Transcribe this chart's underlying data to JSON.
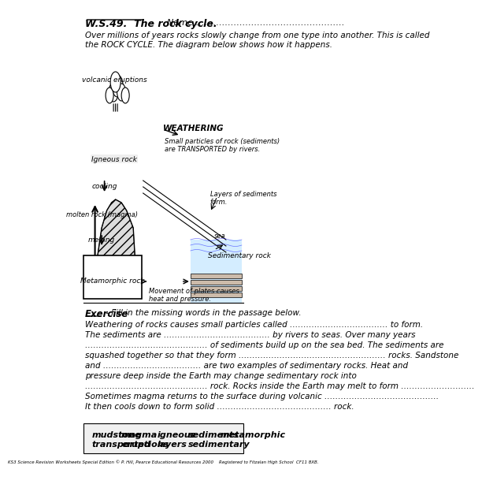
{
  "title": "W.S.49.  The rock cycle.",
  "name_line": "Name ……………………………………………",
  "intro": "Over millions of years rocks slowly change from one type into another. This is called\nthe ROCK CYCLE. The diagram below shows how it happens.",
  "exercise_label": "Exercise",
  "exercise_sub": " - Fill in the missing words in the passage below.",
  "passage_lines": [
    "Weathering of rocks causes small particles called ……………………………… to form.",
    "The sediments are ………………………………… by rivers to seas. Over many years",
    "……………………………………… of sediments build up on the sea bed. The sediments are",
    "squashed together so that they form ……………………………………………… rocks. Sandstone",
    "and ……………………………… are two examples of sedimentary rocks. Heat and",
    "pressure deep inside the Earth may change sedimentary rock into",
    "……………………………………… rock. Rocks inside the Earth may melt to form ………………………",
    "Sometimes magma returns to the surface during volcanic ……………………………………",
    "It then cools down to form solid …………………………………… rock."
  ],
  "word_bank_row1": [
    "mudstone",
    "magma",
    "igneous",
    "sediments",
    "metamorphic"
  ],
  "word_bank_row2": [
    "transported",
    "eruptions",
    "layers",
    "sedimentary"
  ],
  "footer": "KS3 Science Revision Worksheets Special Edition © P. Hill, Pearce Educational Resources 2000    Registered to Fitzalan High School  CF11 8XB.",
  "bg_color": "#ffffff",
  "text_color": "#000000",
  "diagram_labels": {
    "volcanic_eruptions": "volcanic eruptions",
    "weathering": "WEATHERING",
    "igneous_rock": "Igneous rock",
    "cooling": "cooling",
    "molten_rock": "molten rock (magma)",
    "melting": "melting",
    "metamorphic_rock": "Metamorphic rock",
    "sediments_transport": "Small particles of rock (sediments)\nare TRANSPORTED by rivers.",
    "layers_form": "Layers of sediments\nform.",
    "sea": "sea",
    "sedimentary_rock": "Sedimentary rock",
    "plates": "Movement of plates causes\nheat and pressure."
  }
}
